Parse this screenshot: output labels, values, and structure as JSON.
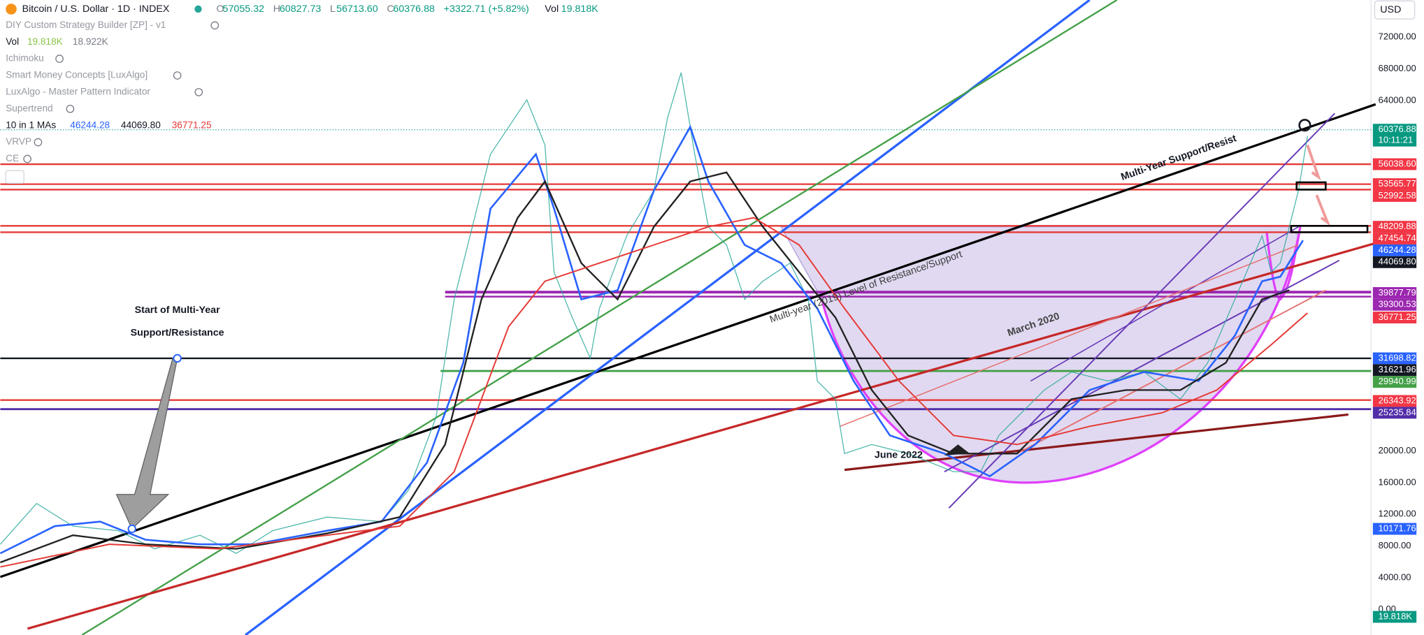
{
  "header": {
    "symbol": "Bitcoin / U.S. Dollar · 1D · INDEX",
    "ohlc": [
      {
        "key": "O",
        "value": "57055.32"
      },
      {
        "key": "H",
        "value": "60827.73"
      },
      {
        "key": "L",
        "value": "56713.60"
      },
      {
        "key": "C",
        "value": "60376.88"
      }
    ],
    "change": "+3322.71 (+5.82%)",
    "vol_key": "Vol",
    "vol_value": "19.818K",
    "currency": "USD"
  },
  "indicators": [
    {
      "name": "DIY Custom Strategy Builder [ZP] - v1"
    },
    {
      "name": "Vol",
      "values": [
        "19.818K",
        "18.922K"
      ]
    },
    {
      "name": "Ichimoku"
    },
    {
      "name": "Smart Money Concepts [LuxAlgo]"
    },
    {
      "name": "LuxAlgo - Master Pattern Indicator"
    },
    {
      "name": "Supertrend"
    },
    {
      "name": "10 in 1 MAs",
      "values": [
        "46244.28",
        "44069.80",
        "36771.25"
      ]
    },
    {
      "name": "VRVP"
    },
    {
      "name": "CE"
    }
  ],
  "annotations": {
    "multi_year": "Multi-Year Support/Resist",
    "start_line1": "Start of Multi-Year",
    "start_line2": "Support/Resistance",
    "level_2019": "Multi-year (2019) Level of Resistance/Support",
    "march": "March 2020",
    "june": "June 2022"
  },
  "price_axis": {
    "ticks": [
      "72000.00",
      "68000.00",
      "64000.00",
      "20000.00",
      "16000.00",
      "12000.00",
      "8000.00",
      "4000.00",
      "0.00"
    ],
    "tags": [
      "60376.88",
      "10:11:21",
      "56038.60",
      "53565.77",
      "52992.58",
      "48209.88",
      "47454.74",
      "46244.28",
      "44069.80",
      "39877.79",
      "39300.53",
      "36771.25",
      "31698.82",
      "31621.96",
      "29940.99",
      "26343.92",
      "25235.84",
      "10171.76",
      "19.818K"
    ]
  }
}
